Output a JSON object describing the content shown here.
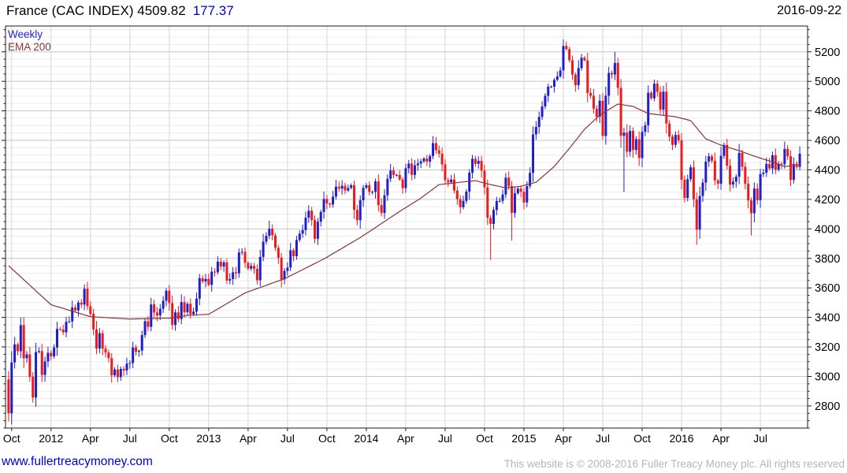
{
  "header": {
    "title": "France (CAC INDEX) 4509.82",
    "change": "177.37",
    "date": "2016-09-22"
  },
  "legend": {
    "series": "Weekly",
    "overlay": "EMA 200"
  },
  "footer": {
    "site": "www.fullertreacymoney.com",
    "copyright": "This website is © 2008-2016 Fuller Treacy Money plc. All rights reserved"
  },
  "chart_data": {
    "type": "candlestick",
    "title": "France (CAC INDEX)",
    "period": "Weekly",
    "overlay": "EMA 200",
    "last_close": 4509.82,
    "change": 177.37,
    "grid": true,
    "y_axis": {
      "min": 2650,
      "max": 5375,
      "major_step": 200,
      "minor_step": 50,
      "labels": [
        5200,
        5000,
        4800,
        4600,
        4400,
        4200,
        4000,
        3800,
        3600,
        3400,
        3200,
        3000,
        2800
      ],
      "side": "right"
    },
    "x_axis": {
      "ticks": [
        {
          "label": "Oct",
          "week": 1
        },
        {
          "label": "2012",
          "week": 14
        },
        {
          "label": "Apr",
          "week": 27
        },
        {
          "label": "Jul",
          "week": 40
        },
        {
          "label": "Oct",
          "week": 53
        },
        {
          "label": "2013",
          "week": 66
        },
        {
          "label": "Apr",
          "week": 79
        },
        {
          "label": "Jul",
          "week": 92
        },
        {
          "label": "Oct",
          "week": 105
        },
        {
          "label": "2014",
          "week": 118
        },
        {
          "label": "Apr",
          "week": 131
        },
        {
          "label": "Jul",
          "week": 144
        },
        {
          "label": "Oct",
          "week": 157
        },
        {
          "label": "2015",
          "week": 170
        },
        {
          "label": "Apr",
          "week": 183
        },
        {
          "label": "Jul",
          "week": 196
        },
        {
          "label": "Oct",
          "week": 209
        },
        {
          "label": "2016",
          "week": 222
        },
        {
          "label": "Apr",
          "week": 235
        },
        {
          "label": "Jul",
          "week": 248
        }
      ]
    },
    "first_open": 2980,
    "weekly_closes": [
      2750,
      3095,
      3217,
      3171,
      3348,
      3123,
      3149,
      2997,
      2857,
      3165,
      3172,
      3010,
      3102,
      3160,
      3136,
      3196,
      3322,
      3318,
      3299,
      3370,
      3373,
      3467,
      3447,
      3501,
      3487,
      3594,
      3476,
      3424,
      3319,
      3189,
      3293,
      3188,
      3162,
      3124,
      3008,
      3047,
      2995,
      3051,
      3041,
      3087,
      3091,
      3196,
      3168,
      3175,
      3280,
      3374,
      3336,
      3488,
      3433,
      3413,
      3459,
      3513,
      3581,
      3497,
      3349,
      3434,
      3389,
      3504,
      3435,
      3492,
      3423,
      3439,
      3527,
      3666,
      3643,
      3661,
      3621,
      3710,
      3706,
      3778,
      3745,
      3773,
      3650,
      3660,
      3706,
      3699,
      3840,
      3844,
      3770,
      3731,
      3749,
      3729,
      3652,
      3810,
      3913,
      3953,
      4001,
      3956,
      3872,
      3805,
      3658,
      3715,
      3738,
      3855,
      3815,
      3925,
      3968,
      3992,
      4076,
      4123,
      4060,
      3933,
      4049,
      4115,
      4203,
      4172,
      4165,
      4219,
      4286,
      4273,
      4292,
      4260,
      4278,
      4295,
      4129,
      4059,
      4194,
      4278,
      4296,
      4250,
      4251,
      4322,
      4161,
      4108,
      4228,
      4340,
      4396,
      4366,
      4366,
      4335,
      4276,
      4411,
      4443,
      4366,
      4431,
      4443,
      4458,
      4477,
      4456,
      4494,
      4581,
      4533,
      4510,
      4437,
      4330,
      4316,
      4335,
      4260,
      4202,
      4147,
      4190,
      4253,
      4381,
      4475,
      4441,
      4461,
      4395,
      4281,
      4074,
      4034,
      4128,
      4189,
      4190,
      4233,
      4347,
      4290,
      4108,
      4241,
      4273,
      4252,
      4179,
      4290,
      4380,
      4640,
      4691,
      4759,
      4830,
      4902,
      4964,
      4964,
      5010,
      5034,
      5074,
      5240,
      5218,
      5143,
      5046,
      4974,
      5090,
      5160,
      5142,
      4921,
      4902,
      4815,
      4760,
      4869,
      4630,
      4903,
      5057,
      5046,
      5125,
      4956,
      4631,
      4653,
      4523,
      4664,
      4535,
      4608,
      4480,
      4658,
      4702,
      4923,
      4885,
      4984,
      4928,
      4809,
      4930,
      4714,
      4625,
      4570,
      4637,
      4600,
      4333,
      4210,
      4337,
      4417,
      4201,
      3995,
      4223,
      4314,
      4456,
      4492,
      4462,
      4329,
      4306,
      4495,
      4569,
      4428,
      4301,
      4320,
      4354,
      4515,
      4421,
      4306,
      4193,
      4106,
      4273,
      4195,
      4372,
      4381,
      4440,
      4410,
      4499,
      4401,
      4441,
      4438,
      4542,
      4492,
      4332,
      4441,
      4420,
      4509.82
    ],
    "wick_overrides": {
      "0": {
        "low": 2695
      },
      "86": {
        "high": 4055
      },
      "159": {
        "low": 3789
      },
      "166": {
        "low": 3920
      },
      "183": {
        "high": 5285
      },
      "184": {
        "high": 5270
      },
      "196": {
        "low": 4605
      },
      "200": {
        "high": 5200
      },
      "203": {
        "low": 4250
      },
      "227": {
        "low": 3892
      },
      "245": {
        "low": 3955
      }
    },
    "ema_anchors": [
      [
        0,
        3750
      ],
      [
        14,
        3486
      ],
      [
        27,
        3405
      ],
      [
        40,
        3389
      ],
      [
        53,
        3395
      ],
      [
        60,
        3416
      ],
      [
        66,
        3421
      ],
      [
        78,
        3566
      ],
      [
        91,
        3662
      ],
      [
        104,
        3796
      ],
      [
        116,
        3941
      ],
      [
        129,
        4118
      ],
      [
        136,
        4209
      ],
      [
        142,
        4300
      ],
      [
        149,
        4316
      ],
      [
        154,
        4327
      ],
      [
        159,
        4300
      ],
      [
        164,
        4278
      ],
      [
        169,
        4289
      ],
      [
        174,
        4316
      ],
      [
        180,
        4423
      ],
      [
        185,
        4546
      ],
      [
        190,
        4675
      ],
      [
        195,
        4771
      ],
      [
        201,
        4846
      ],
      [
        206,
        4830
      ],
      [
        211,
        4782
      ],
      [
        220,
        4760
      ],
      [
        225,
        4734
      ],
      [
        230,
        4610
      ],
      [
        235,
        4568
      ],
      [
        241,
        4530
      ],
      [
        246,
        4493
      ],
      [
        251,
        4460
      ],
      [
        256,
        4423
      ],
      [
        261,
        4432
      ]
    ],
    "colors": {
      "up": "#1e1ecb",
      "down": "#ee1a1a",
      "ema": "#8b3434",
      "ema_marker": "#cc4444",
      "grid_minor": "#ececec",
      "grid_major": "#c5c5c5",
      "grid_vert": "#d6d6d6",
      "frame": "#1a1a1a",
      "axis_text": "#000000"
    }
  }
}
